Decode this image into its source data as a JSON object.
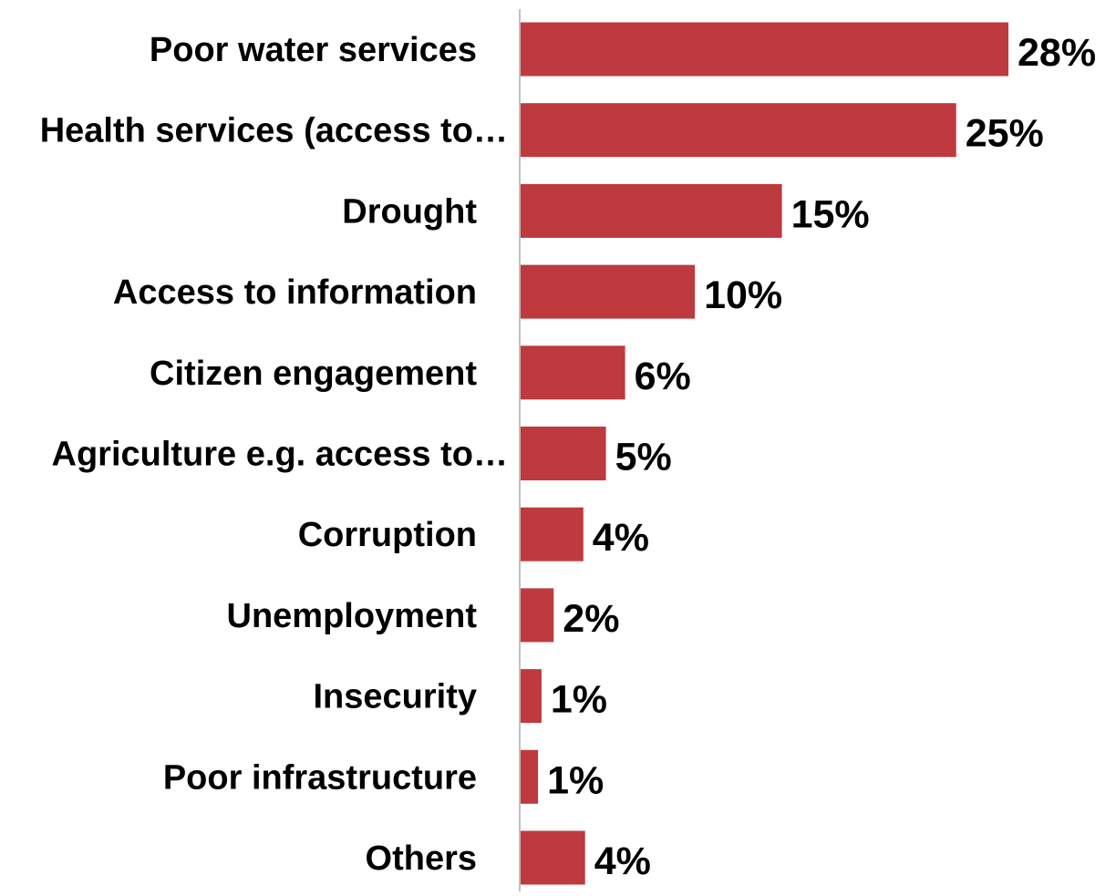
{
  "chart_data": {
    "type": "bar",
    "orientation": "horizontal",
    "categories": [
      "Poor water services",
      "Health services (access to…",
      "Drought",
      "Access to information",
      "Citizen engagement",
      "Agriculture e.g. access to…",
      "Corruption",
      "Unemployment",
      "Insecurity",
      "Poor infrastructure",
      "Others"
    ],
    "values": [
      28,
      25,
      15,
      10,
      6,
      5,
      4,
      2,
      1,
      1,
      4
    ],
    "value_labels": [
      "28%",
      "25%",
      "15%",
      "10%",
      "6%",
      "5%",
      "4%",
      "2%",
      "1%",
      "1%",
      "4%"
    ],
    "bar_widths": [
      28,
      25,
      15,
      10,
      6,
      4.9,
      3.6,
      1.9,
      1.2,
      1.0,
      3.7
    ],
    "unit": "%",
    "title": "",
    "xlabel": "",
    "ylabel": "",
    "xlim": [
      0,
      28
    ],
    "grid": false,
    "legend": "none",
    "bar_color": "#BE3A3F",
    "axis_color": "#BFBFBF",
    "text_color": "#000000"
  }
}
